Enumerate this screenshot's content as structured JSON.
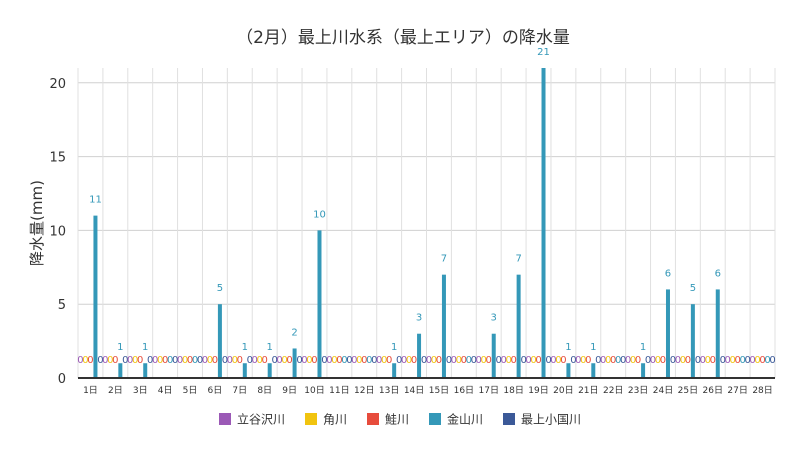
{
  "chart_data": {
    "type": "bar",
    "title": "（2月）最上川水系（最上エリア）の降水量",
    "xlabel": "",
    "ylabel": "降水量(mm)",
    "ylim": [
      0,
      21
    ],
    "yticks": [
      0,
      5,
      10,
      15,
      20
    ],
    "grid": true,
    "legend_position": "bottom",
    "categories": [
      "1日",
      "2日",
      "3日",
      "4日",
      "5日",
      "6日",
      "7日",
      "8日",
      "9日",
      "10日",
      "11日",
      "12日",
      "13日",
      "14日",
      "15日",
      "16日",
      "17日",
      "18日",
      "19日",
      "20日",
      "21日",
      "22日",
      "23日",
      "24日",
      "25日",
      "26日",
      "27日",
      "28日"
    ],
    "series": [
      {
        "name": "立谷沢川",
        "color": "#9b59b6",
        "values": [
          0,
          0,
          0,
          0,
          0,
          0,
          0,
          0,
          0,
          0,
          0,
          0,
          0,
          0,
          0,
          0,
          0,
          0,
          0,
          0,
          0,
          0,
          0,
          0,
          0,
          0,
          0,
          0
        ]
      },
      {
        "name": "角川",
        "color": "#f1c40f",
        "values": [
          0,
          0,
          0,
          0,
          0,
          0,
          0,
          0,
          0,
          0,
          0,
          0,
          0,
          0,
          0,
          0,
          0,
          0,
          0,
          0,
          0,
          0,
          0,
          0,
          0,
          0,
          0,
          0
        ]
      },
      {
        "name": "鮭川",
        "color": "#e74c3c",
        "values": [
          0,
          0,
          0,
          0,
          0,
          0,
          0,
          0,
          0,
          0,
          0,
          0,
          0,
          0,
          0,
          0,
          0,
          0,
          0,
          0,
          0,
          0,
          0,
          0,
          0,
          0,
          0,
          0
        ]
      },
      {
        "name": "金山川",
        "color": "#3498b8",
        "values": [
          11,
          1,
          1,
          0,
          0,
          5,
          1,
          1,
          2,
          10,
          0,
          0,
          1,
          3,
          7,
          0,
          3,
          7,
          21,
          1,
          1,
          0,
          1,
          6,
          5,
          6,
          0,
          0
        ]
      },
      {
        "name": "最上小国川",
        "color": "#3b5998",
        "values": [
          0,
          0,
          0,
          0,
          0,
          0,
          0,
          0,
          0,
          0,
          0,
          0,
          0,
          0,
          0,
          0,
          0,
          0,
          0,
          0,
          0,
          0,
          0,
          0,
          0,
          0,
          0,
          0
        ]
      }
    ]
  }
}
